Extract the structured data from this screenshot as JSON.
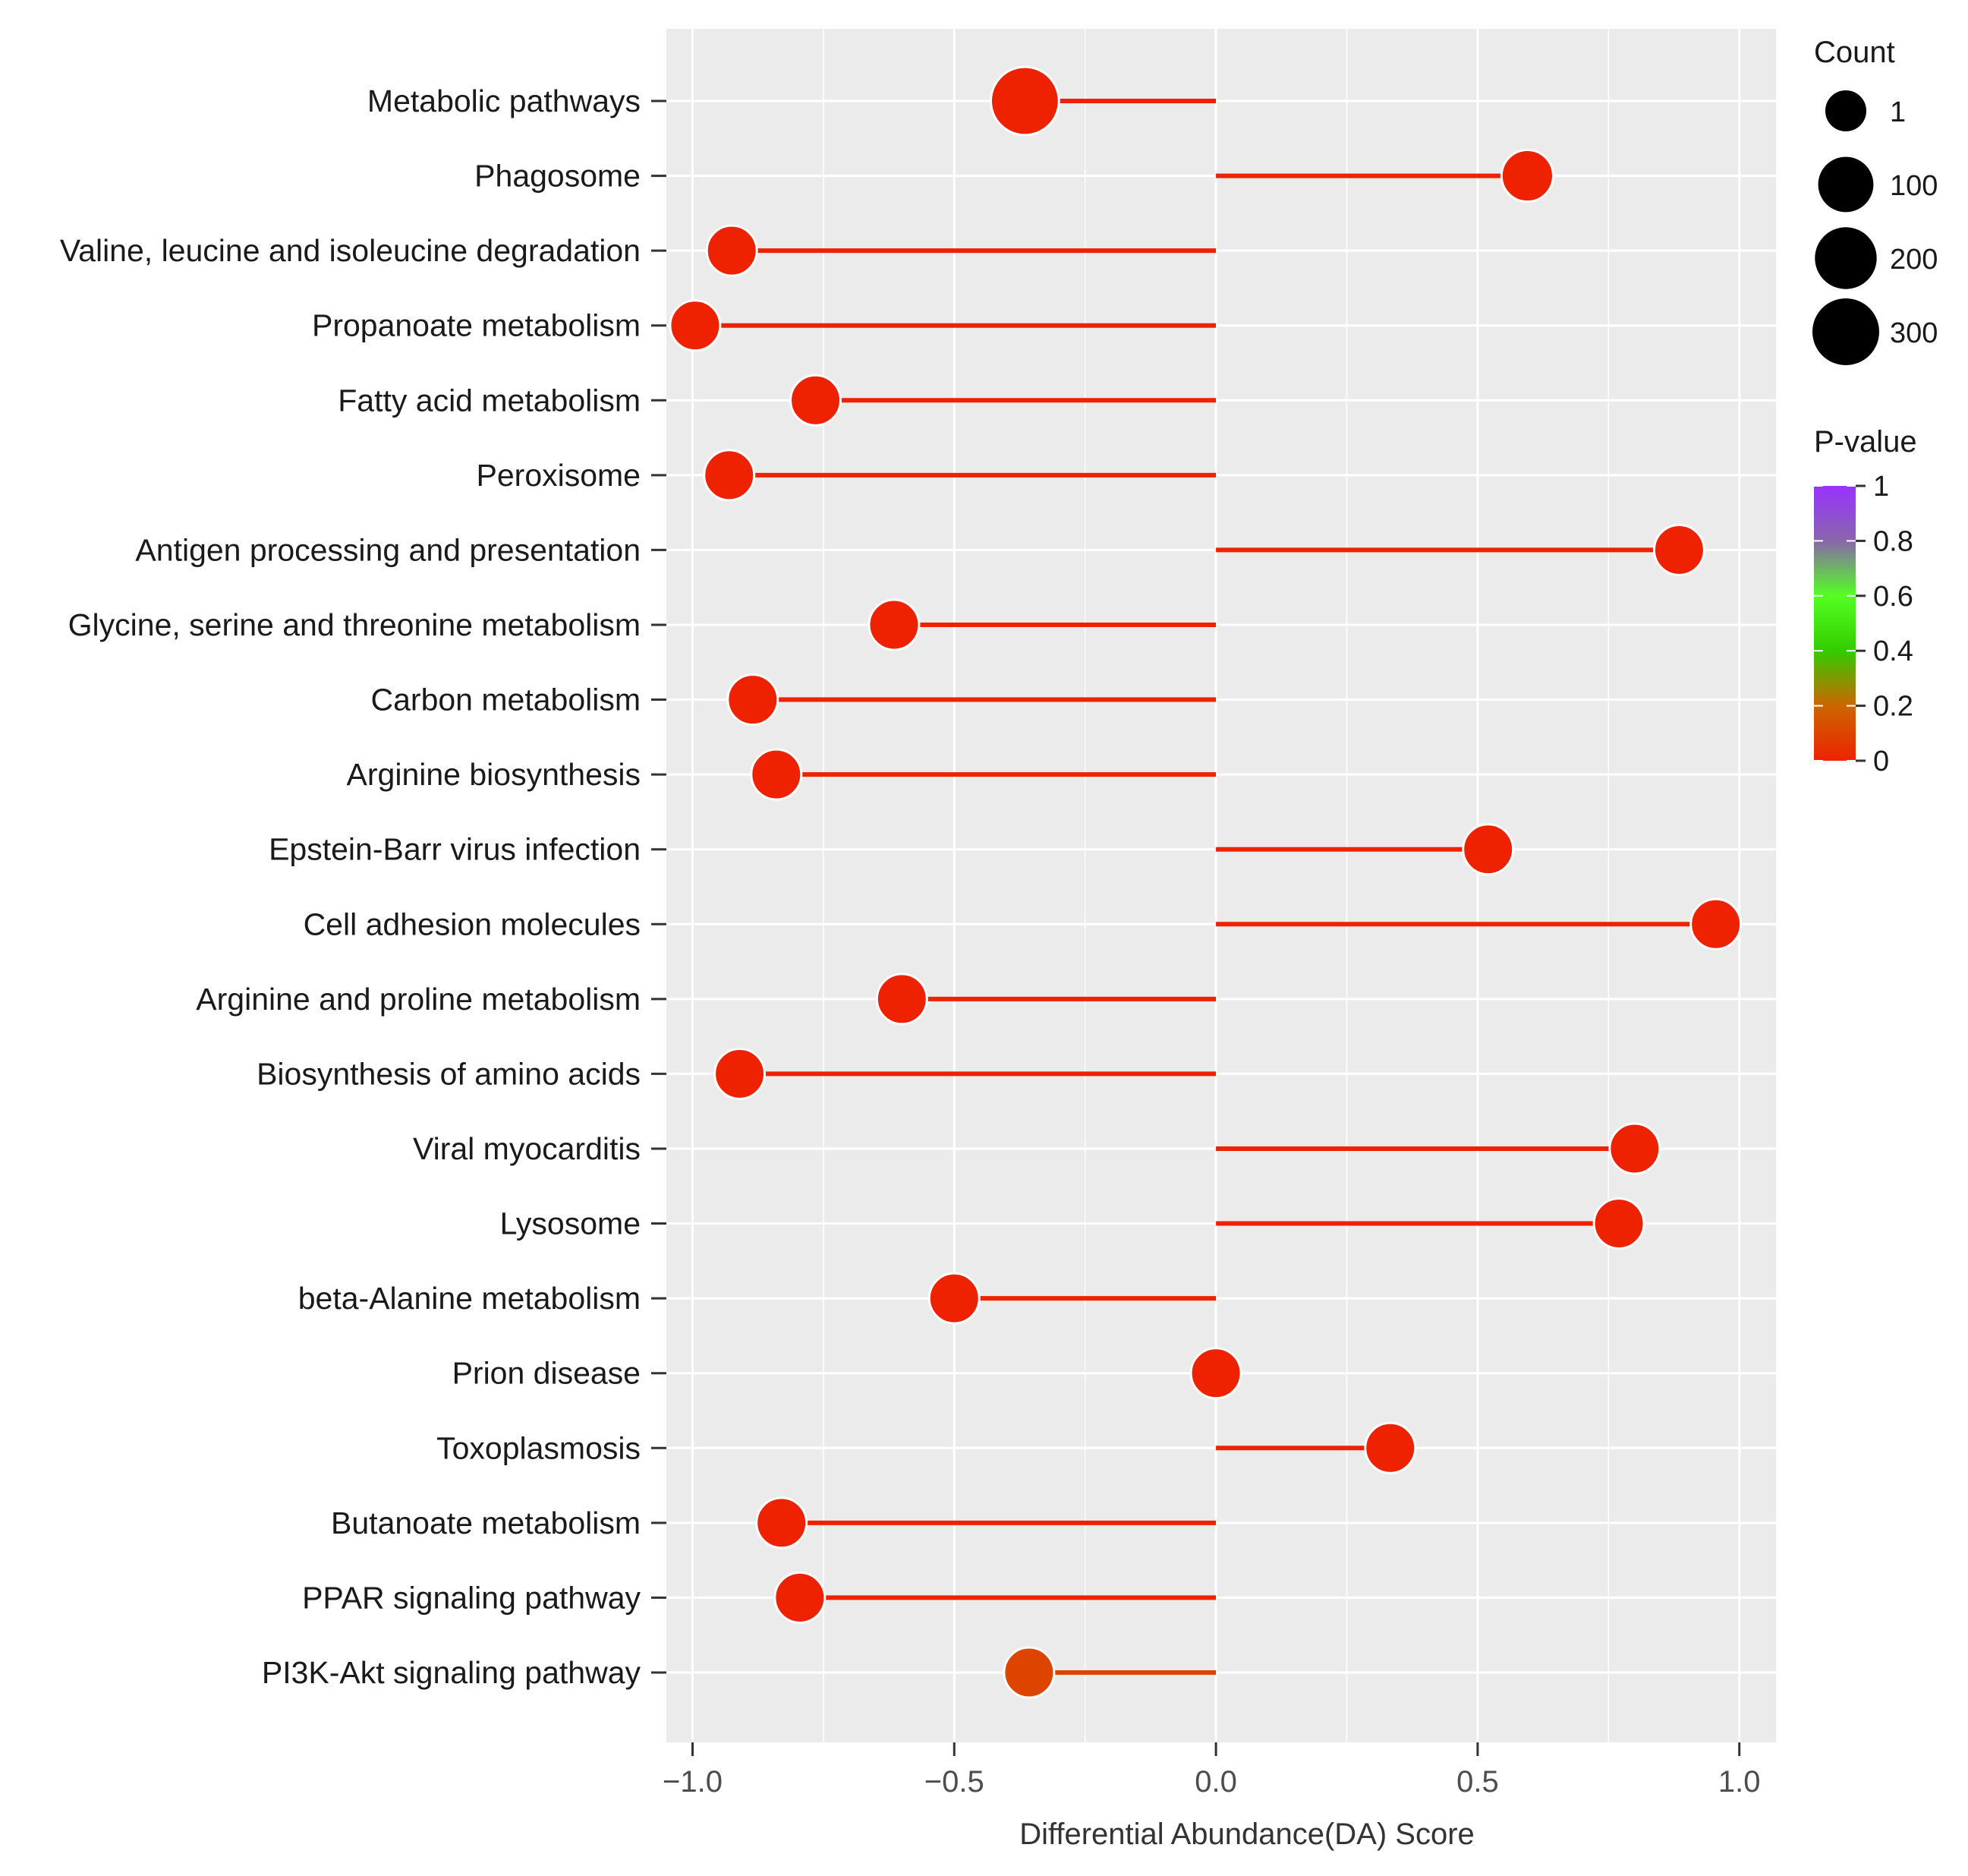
{
  "chart_data": {
    "type": "lollipop",
    "xlabel": "Differential Abundance(DA) Score",
    "ylabel": "",
    "xlim": [
      -1.05,
      1.07
    ],
    "xticks": [
      -1.0,
      -0.5,
      0.0,
      0.5,
      1.0
    ],
    "xtick_labels": [
      "−1.0",
      "−0.5",
      "0.0",
      "0.5",
      "1.0"
    ],
    "grid": true,
    "categories": [
      "Metabolic pathways",
      "Phagosome",
      "Valine, leucine and isoleucine degradation",
      "Propanoate metabolism",
      "Fatty acid metabolism",
      "Peroxisome",
      "Antigen processing and presentation",
      "Glycine, serine and threonine metabolism",
      "Carbon metabolism",
      "Arginine biosynthesis",
      "Epstein-Barr virus infection",
      "Cell adhesion molecules",
      "Arginine and proline metabolism",
      "Biosynthesis of amino acids",
      "Viral myocarditis",
      "Lysosome",
      "beta-Alanine metabolism",
      "Prion disease",
      "Toxoplasmosis",
      "Butanoate metabolism",
      "PPAR signaling pathway",
      "PI3K-Akt signaling pathway"
    ],
    "da_score": [
      -0.365,
      0.595,
      -0.925,
      -0.995,
      -0.765,
      -0.93,
      0.885,
      -0.615,
      -0.885,
      -0.84,
      0.52,
      0.955,
      -0.6,
      -0.91,
      0.8,
      0.77,
      -0.5,
      0.0,
      0.333,
      -0.83,
      -0.795,
      -0.357
    ],
    "count": [
      330,
      60,
      45,
      45,
      45,
      45,
      45,
      45,
      45,
      45,
      45,
      45,
      45,
      45,
      45,
      45,
      45,
      45,
      45,
      45,
      45,
      45
    ],
    "p_value": [
      0.0,
      0.0,
      0.0,
      0.0,
      0.0,
      0.0,
      0.0,
      0.0,
      0.0,
      0.0,
      0.0,
      0.0,
      0.0,
      0.0,
      0.0,
      0.0,
      0.0,
      0.0,
      0.0,
      0.0,
      0.0,
      0.1
    ],
    "legend_size": {
      "title": "Count",
      "values": [
        1,
        100,
        200,
        300
      ],
      "labels": [
        "1",
        "100",
        "200",
        "300"
      ]
    },
    "legend_color": {
      "title": "P-value",
      "ticks": [
        0,
        0.2,
        0.4,
        0.6,
        0.8,
        1
      ],
      "labels": [
        "0",
        "0.2",
        "0.4",
        "0.6",
        "0.8",
        "1"
      ],
      "colors": [
        "#ee2200",
        "#cc6600",
        "#33cc00",
        "#55ff22",
        "#8866aa",
        "#9933ff"
      ]
    }
  }
}
